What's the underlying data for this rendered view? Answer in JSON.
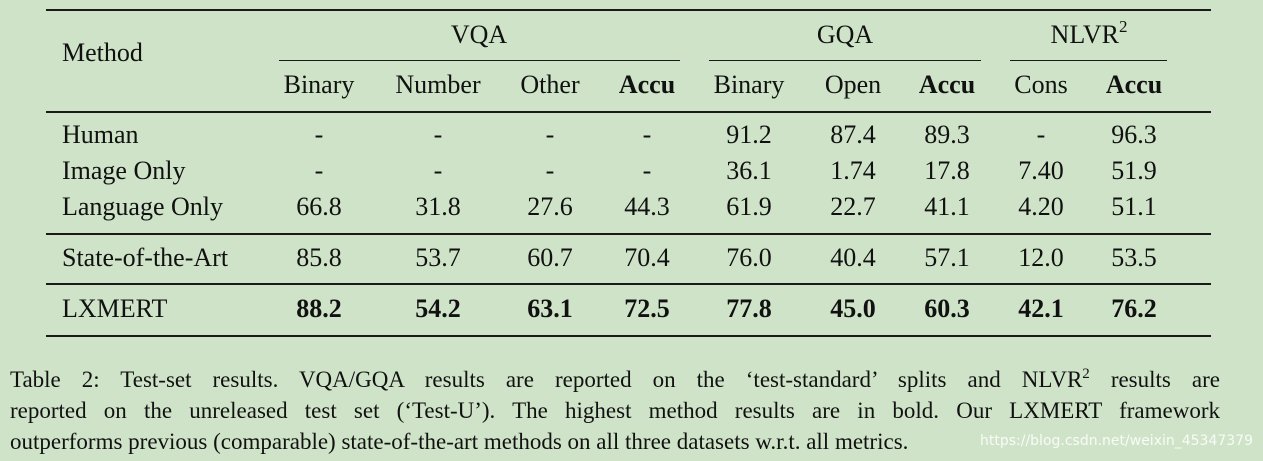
{
  "table": {
    "method_header": "Method",
    "groups": [
      {
        "name": "VQA",
        "sup": ""
      },
      {
        "name": "GQA",
        "sup": ""
      },
      {
        "name": "NLVR",
        "sup": "2"
      }
    ],
    "columns": [
      "Binary",
      "Number",
      "Other",
      "Accu",
      "Binary",
      "Open",
      "Accu",
      "Cons",
      "Accu"
    ],
    "rows": [
      {
        "method": "Human",
        "values": [
          "-",
          "-",
          "-",
          "-",
          "91.2",
          "87.4",
          "89.3",
          "-",
          "96.3"
        ]
      },
      {
        "method": "Image Only",
        "values": [
          "-",
          "-",
          "-",
          "-",
          "36.1",
          "1.74",
          "17.8",
          "7.40",
          "51.9"
        ]
      },
      {
        "method": "Language Only",
        "values": [
          "66.8",
          "31.8",
          "27.6",
          "44.3",
          "61.9",
          "22.7",
          "41.1",
          "4.20",
          "51.1"
        ]
      },
      {
        "method": "State-of-the-Art",
        "values": [
          "85.8",
          "53.7",
          "60.7",
          "70.4",
          "76.0",
          "40.4",
          "57.1",
          "12.0",
          "53.5"
        ]
      },
      {
        "method": "LXMERT",
        "values": [
          "88.2",
          "54.2",
          "63.1",
          "72.5",
          "77.8",
          "45.0",
          "60.3",
          "42.1",
          "76.2"
        ]
      }
    ]
  },
  "caption": {
    "line1_a": "Table 2: Test-set results. VQA/GQA results are reported on the ‘test-standard’ splits and NLVR",
    "line1_sup": "2",
    "line1_b": " results are",
    "line2": "reported on the unreleased test set (‘Test-U’). The highest method results are in bold. Our LXMERT framework",
    "line3": "outperforms previous (comparable) state-of-the-art methods on all three datasets w.r.t. all metrics."
  },
  "watermark": "https://blog.csdn.net/weixin_45347379"
}
